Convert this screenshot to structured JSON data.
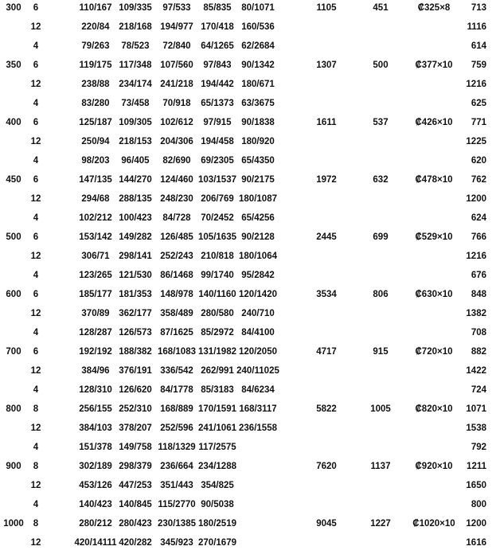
{
  "rows": [
    [
      "300",
      "6",
      "110/167",
      "109/335",
      "97/533",
      "85/835",
      "80/1071",
      "1105",
      "451",
      "₡325×8",
      "713"
    ],
    [
      "",
      "12",
      "220/84",
      "218/168",
      "194/977",
      "170/418",
      "160/536",
      "",
      "",
      "",
      "1116"
    ],
    [
      "",
      "4",
      "79/263",
      "78/523",
      "72/840",
      "64/1265",
      "62/2684",
      "",
      "",
      "",
      "614"
    ],
    [
      "350",
      "6",
      "119/175",
      "117/348",
      "107/560",
      "97/843",
      "90/1342",
      "1307",
      "500",
      "₡377×10",
      "759"
    ],
    [
      "",
      "12",
      "238/88",
      "234/174",
      "241/218",
      "194/442",
      "180/671",
      "",
      "",
      "",
      "1216"
    ],
    [
      "",
      "4",
      "83/280",
      "73/458",
      "70/918",
      "65/1373",
      "63/3675",
      "",
      "",
      "",
      "625"
    ],
    [
      "400",
      "6",
      "125/187",
      "109/305",
      "102/612",
      "97/915",
      "90/1838",
      "1611",
      "537",
      "₡426×10",
      "771"
    ],
    [
      "",
      "12",
      "250/94",
      "218/153",
      "204/306",
      "194/458",
      "180/920",
      "",
      "",
      "",
      "1225"
    ],
    [
      "",
      "4",
      "98/203",
      "96/405",
      "82/690",
      "69/2305",
      "65/4350",
      "",
      "",
      "",
      "620"
    ],
    [
      "450",
      "6",
      "147/135",
      "144/270",
      "124/460",
      "103/1537",
      "90/2175",
      "1972",
      "632",
      "₡478×10",
      "762"
    ],
    [
      "",
      "12",
      "294/68",
      "288/135",
      "248/230",
      "206/769",
      "180/1087",
      "",
      "",
      "",
      "1200"
    ],
    [
      "",
      "4",
      "102/212",
      "100/423",
      "84/728",
      "70/2452",
      "65/4256",
      "",
      "",
      "",
      "624"
    ],
    [
      "500",
      "6",
      "153/142",
      "149/282",
      "126/485",
      "105/1635",
      "90/2128",
      "2445",
      "699",
      "₡529×10",
      "766"
    ],
    [
      "",
      "12",
      "306/71",
      "298/141",
      "252/243",
      "210/818",
      "180/1064",
      "",
      "",
      "",
      "1216"
    ],
    [
      "",
      "4",
      "123/265",
      "121/530",
      "86/1468",
      "99/1740",
      "95/2842",
      "",
      "",
      "",
      "676"
    ],
    [
      "600",
      "6",
      "185/177",
      "181/353",
      "148/978",
      "140/1160",
      "120/1420",
      "3534",
      "806",
      "₡630×10",
      "848"
    ],
    [
      "",
      "12",
      "370/89",
      "362/177",
      "358/489",
      "280/580",
      "240/710",
      "",
      "",
      "",
      "1382"
    ],
    [
      "",
      "4",
      "128/287",
      "126/573",
      "87/1625",
      "85/2972",
      "84/4100",
      "",
      "",
      "",
      "708"
    ],
    [
      "700",
      "6",
      "192/192",
      "188/382",
      "168/1083",
      "131/1982",
      "120/2050",
      "4717",
      "915",
      "₡720×10",
      "882"
    ],
    [
      "",
      "12",
      "384/96",
      "376/191",
      "336/542",
      "262/991",
      "240/11025",
      "",
      "",
      "",
      "1422"
    ],
    [
      "",
      "4",
      "128/310",
      "126/620",
      "84/1778",
      "85/3183",
      "84/6234",
      "",
      "",
      "",
      "724"
    ],
    [
      "800",
      "8",
      "256/155",
      "252/310",
      "168/889",
      "170/1591",
      "168/3117",
      "5822",
      "1005",
      "₡820×10",
      "1071"
    ],
    [
      "",
      "12",
      "384/103",
      "378/207",
      "252/596",
      "241/1061",
      "236/1558",
      "",
      "",
      "",
      "1538"
    ],
    [
      "",
      "4",
      "151/378",
      "149/758",
      "118/1329",
      "117/2575",
      "",
      "",
      "",
      "",
      "792"
    ],
    [
      "900",
      "8",
      "302/189",
      "298/379",
      "236/664",
      "234/1288",
      "",
      "7620",
      "1137",
      "₡920×10",
      "1211"
    ],
    [
      "",
      "12",
      "453/126",
      "447/253",
      "351/443",
      "354/825",
      "",
      "",
      "",
      "",
      "1650"
    ],
    [
      "",
      "4",
      "140/423",
      "140/845",
      "115/2770",
      "90/5038",
      "",
      "",
      "",
      "",
      "800"
    ],
    [
      "1000",
      "8",
      "280/212",
      "280/423",
      "230/1385",
      "180/2519",
      "",
      "9045",
      "1227",
      "₡1020×10",
      "1200"
    ],
    [
      "",
      "12",
      "420/14111",
      "420/282",
      "345/923",
      "270/1679",
      "",
      "",
      "",
      "",
      "1616"
    ]
  ]
}
